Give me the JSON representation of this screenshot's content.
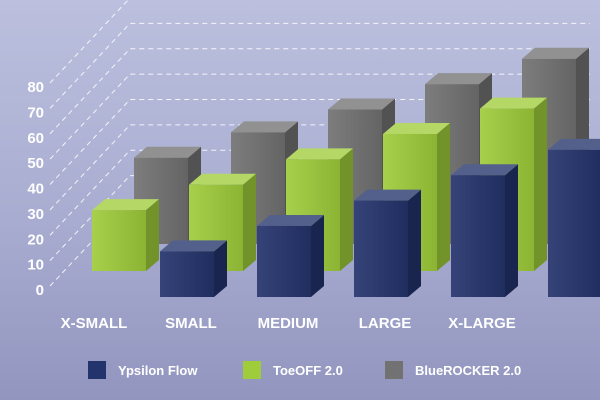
{
  "chart_data": {
    "type": "bar",
    "style": "3d-clustered",
    "title": "",
    "xlabel": "",
    "ylabel": "",
    "ylim": [
      0,
      80
    ],
    "yticks": [
      0,
      10,
      20,
      30,
      40,
      50,
      60,
      70,
      80
    ],
    "grid": true,
    "legend_position": "bottom",
    "categories": [
      "X-SMALL",
      "SMALL",
      "MEDIUM",
      "LARGE",
      "X-LARGE"
    ],
    "series": [
      {
        "name": "BlueROCKER 2.0",
        "color": "#727272",
        "values": [
          34,
          44,
          53,
          63,
          73
        ]
      },
      {
        "name": "ToeOFF 2.0",
        "color": "#9fcc3b",
        "values": [
          24,
          34,
          44,
          54,
          64
        ]
      },
      {
        "name": "Ypsilon Flow",
        "color": "#23336c",
        "values": [
          18,
          28,
          38,
          48,
          58
        ]
      }
    ],
    "legend_order": [
      "Ypsilon Flow",
      "ToeOFF 2.0",
      "BlueROCKER 2.0"
    ]
  }
}
